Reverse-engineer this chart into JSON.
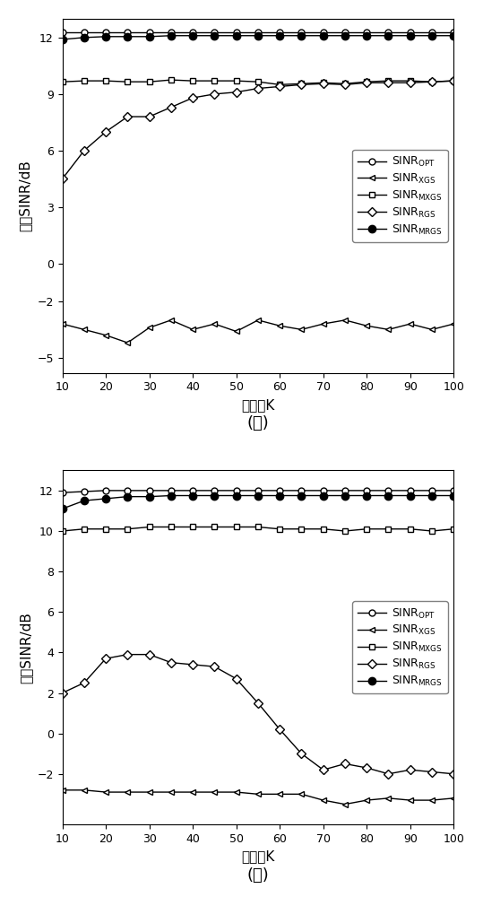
{
  "x": [
    10,
    15,
    20,
    25,
    30,
    35,
    40,
    45,
    50,
    55,
    60,
    65,
    70,
    75,
    80,
    85,
    90,
    95,
    100
  ],
  "a_OPT": [
    12.3,
    12.3,
    12.3,
    12.3,
    12.3,
    12.3,
    12.3,
    12.3,
    12.3,
    12.3,
    12.3,
    12.3,
    12.3,
    12.3,
    12.3,
    12.3,
    12.3,
    12.3,
    12.3
  ],
  "a_XGS": [
    -3.2,
    -3.5,
    -3.8,
    -4.2,
    -3.4,
    -3.0,
    -3.5,
    -3.2,
    -3.6,
    -3.0,
    -3.3,
    -3.5,
    -3.2,
    -3.0,
    -3.3,
    -3.5,
    -3.2,
    -3.5,
    -3.2
  ],
  "a_MXGS": [
    9.65,
    9.7,
    9.7,
    9.65,
    9.65,
    9.75,
    9.7,
    9.7,
    9.7,
    9.65,
    9.5,
    9.55,
    9.6,
    9.55,
    9.65,
    9.7,
    9.7,
    9.65,
    9.7
  ],
  "a_RGS": [
    4.5,
    6.0,
    7.0,
    7.8,
    7.8,
    8.3,
    8.8,
    9.0,
    9.1,
    9.3,
    9.4,
    9.5,
    9.55,
    9.5,
    9.6,
    9.6,
    9.6,
    9.65,
    9.7
  ],
  "a_MRGS": [
    11.9,
    12.0,
    12.05,
    12.05,
    12.05,
    12.1,
    12.1,
    12.1,
    12.1,
    12.1,
    12.1,
    12.1,
    12.1,
    12.1,
    12.1,
    12.1,
    12.1,
    12.1,
    12.1
  ],
  "b_OPT": [
    11.9,
    11.95,
    12.0,
    12.0,
    12.0,
    12.0,
    12.0,
    12.0,
    12.0,
    12.0,
    12.0,
    12.0,
    12.0,
    12.0,
    12.0,
    12.0,
    12.0,
    12.0,
    12.0
  ],
  "b_XGS": [
    -2.8,
    -2.8,
    -2.9,
    -2.9,
    -2.9,
    -2.9,
    -2.9,
    -2.9,
    -2.9,
    -3.0,
    -3.0,
    -3.0,
    -3.3,
    -3.5,
    -3.3,
    -3.2,
    -3.3,
    -3.3,
    -3.2
  ],
  "b_MXGS": [
    10.0,
    10.1,
    10.1,
    10.1,
    10.2,
    10.2,
    10.2,
    10.2,
    10.2,
    10.2,
    10.1,
    10.1,
    10.1,
    10.0,
    10.1,
    10.1,
    10.1,
    10.0,
    10.1
  ],
  "b_RGS": [
    2.0,
    2.5,
    3.7,
    3.9,
    3.9,
    3.5,
    3.4,
    3.3,
    2.7,
    1.5,
    0.2,
    -1.0,
    -1.8,
    -1.5,
    -1.7,
    -2.0,
    -1.8,
    -1.9,
    -2.0
  ],
  "b_MRGS": [
    11.1,
    11.5,
    11.6,
    11.7,
    11.7,
    11.75,
    11.75,
    11.75,
    11.75,
    11.75,
    11.75,
    11.75,
    11.75,
    11.75,
    11.75,
    11.75,
    11.75,
    11.75,
    11.75
  ],
  "ylabel": "输出SINR/dB",
  "xlabel": "快拍数K",
  "label_a": "(ａ)",
  "label_b": "(ｂ)",
  "a_ylim": [
    -5.8,
    13.0
  ],
  "a_yticks": [
    12,
    9,
    6,
    3,
    0,
    -2,
    -5
  ],
  "b_ylim": [
    -4.5,
    13.0
  ],
  "b_yticks": [
    12,
    10,
    8,
    6,
    4,
    2,
    0,
    -2
  ],
  "xticks": [
    10,
    20,
    30,
    40,
    50,
    60,
    70,
    80,
    90,
    100
  ],
  "xlim": [
    10,
    100
  ]
}
